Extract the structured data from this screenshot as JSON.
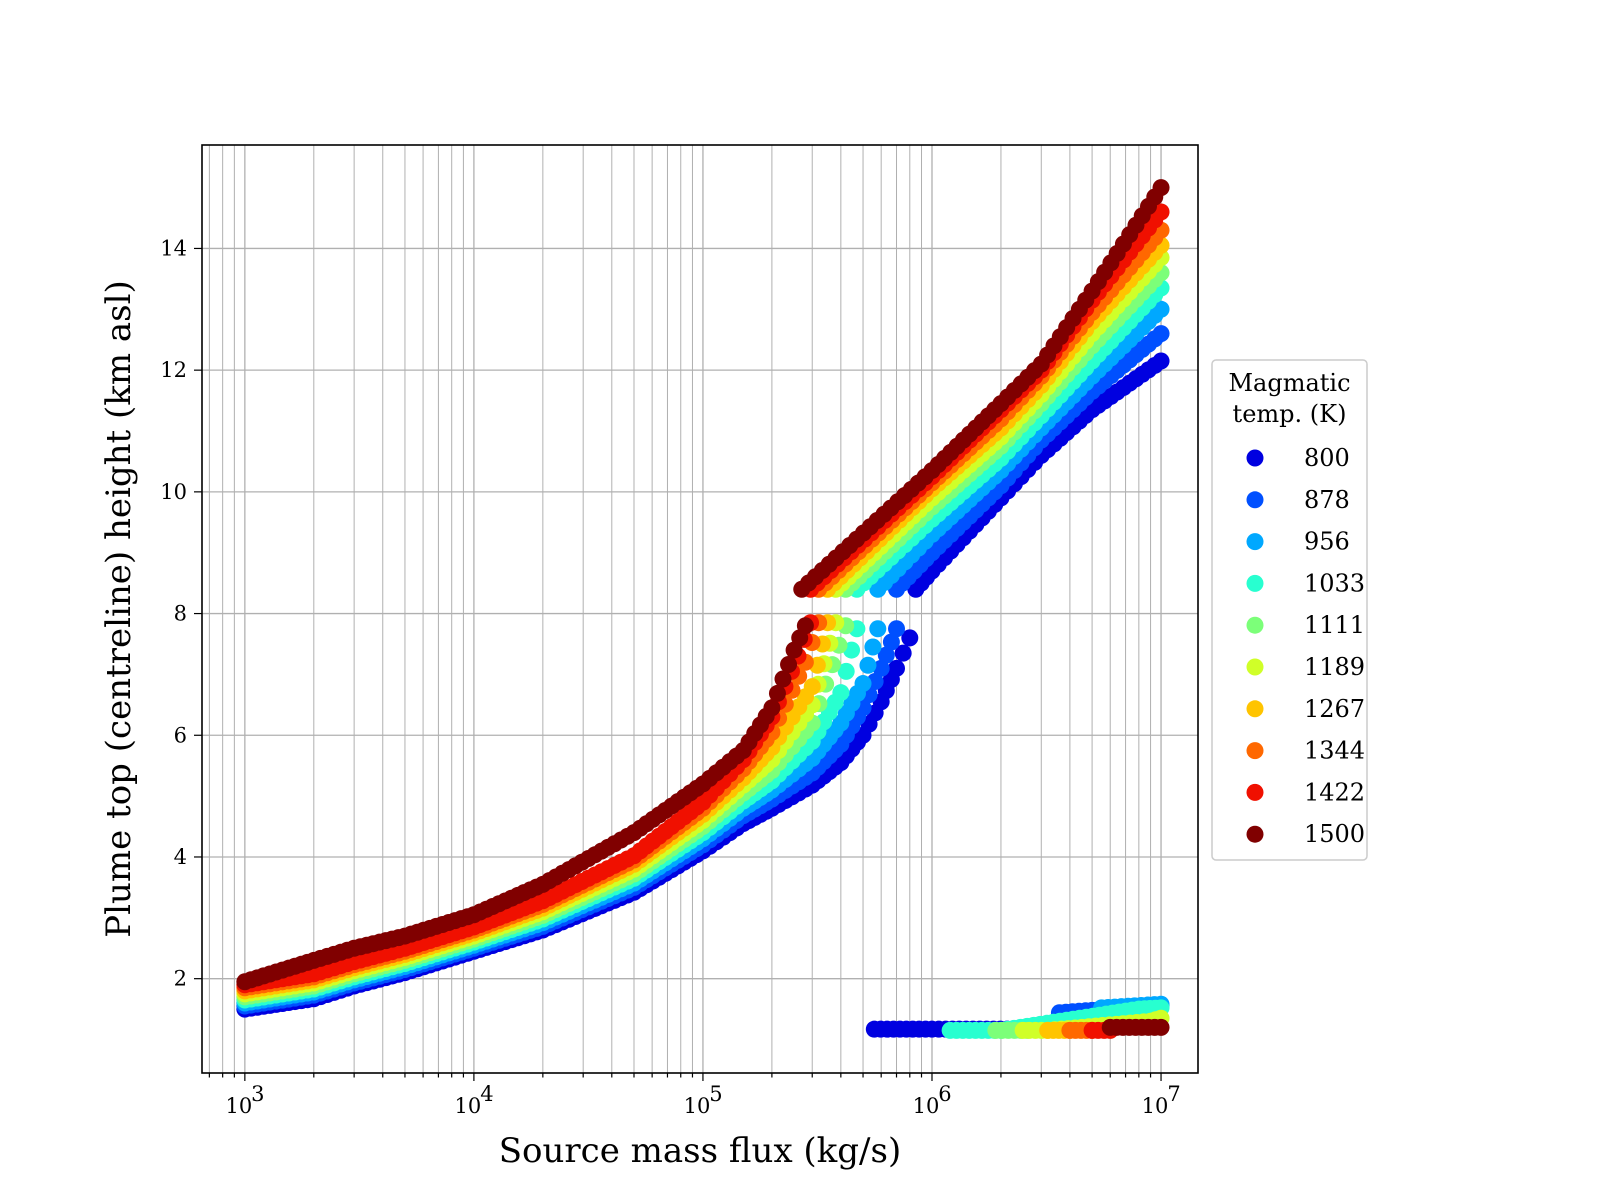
{
  "chart_data": {
    "type": "scatter",
    "title": "",
    "xlabel": "Source mass flux (kg/s)",
    "ylabel": "Plume top (centreline) height (km asl)",
    "x_scale": "log",
    "xlim": [
      650,
      14500000
    ],
    "ylim": [
      0.45,
      15.7
    ],
    "x_ticks": [
      {
        "value": 1000,
        "base": "10",
        "exp": "3"
      },
      {
        "value": 10000,
        "base": "10",
        "exp": "4"
      },
      {
        "value": 100000,
        "base": "10",
        "exp": "5"
      },
      {
        "value": 1000000,
        "base": "10",
        "exp": "6"
      },
      {
        "value": 10000000,
        "base": "10",
        "exp": "7"
      }
    ],
    "y_ticks": [
      {
        "value": 2,
        "label": "2"
      },
      {
        "value": 4,
        "label": "4"
      },
      {
        "value": 6,
        "label": "6"
      },
      {
        "value": 8,
        "label": "8"
      },
      {
        "value": 10,
        "label": "10"
      },
      {
        "value": 12,
        "label": "12"
      },
      {
        "value": 14,
        "label": "14"
      }
    ],
    "grid": true,
    "legend": {
      "title_lines": [
        "Magmatic",
        "temp. (K)"
      ],
      "placement": "outside-right"
    },
    "series": [
      {
        "name": "800",
        "color": "#0000e0",
        "low_branch": [
          [
            1000,
            1.5
          ],
          [
            2000,
            1.67
          ],
          [
            3000,
            1.88
          ],
          [
            5000,
            2.1
          ],
          [
            10000,
            2.45
          ],
          [
            20000,
            2.8
          ],
          [
            50000,
            3.42
          ],
          [
            100000,
            4.1
          ],
          [
            150000,
            4.55
          ],
          [
            200000,
            4.8
          ],
          [
            300000,
            5.18
          ],
          [
            400000,
            5.55
          ],
          [
            500000,
            6.0
          ],
          [
            600000,
            6.55
          ],
          [
            700000,
            7.1
          ],
          [
            800000,
            7.6
          ]
        ],
        "high_branch": [
          [
            850000,
            8.4
          ],
          [
            1000000,
            8.7
          ],
          [
            2000000,
            9.9
          ],
          [
            3000000,
            10.6
          ],
          [
            5000000,
            11.35
          ],
          [
            10000000,
            12.15
          ]
        ],
        "tail": [
          [
            560000,
            1.17
          ],
          [
            1000000,
            1.17
          ],
          [
            3000000,
            1.17
          ],
          [
            3600000,
            1.17
          ]
        ]
      },
      {
        "name": "878",
        "color": "#0050ff",
        "low_branch": [
          [
            1000,
            1.55
          ],
          [
            2000,
            1.73
          ],
          [
            3000,
            1.93
          ],
          [
            5000,
            2.15
          ],
          [
            10000,
            2.5
          ],
          [
            20000,
            2.86
          ],
          [
            50000,
            3.5
          ],
          [
            100000,
            4.2
          ],
          [
            150000,
            4.68
          ],
          [
            200000,
            4.95
          ],
          [
            300000,
            5.38
          ],
          [
            400000,
            5.85
          ],
          [
            500000,
            6.45
          ],
          [
            600000,
            7.1
          ],
          [
            700000,
            7.75
          ]
        ],
        "high_branch": [
          [
            700000,
            8.4
          ],
          [
            1000000,
            9.0
          ],
          [
            2000000,
            10.1
          ],
          [
            3000000,
            10.85
          ],
          [
            5000000,
            11.65
          ],
          [
            10000000,
            12.6
          ]
        ],
        "tail": [
          [
            3600000,
            1.44
          ],
          [
            5000000,
            1.48
          ],
          [
            10000000,
            1.56
          ]
        ]
      },
      {
        "name": "956",
        "color": "#00a8ff",
        "low_branch": [
          [
            1000,
            1.6
          ],
          [
            2000,
            1.78
          ],
          [
            3000,
            1.98
          ],
          [
            5000,
            2.2
          ],
          [
            10000,
            2.55
          ],
          [
            20000,
            2.92
          ],
          [
            50000,
            3.57
          ],
          [
            100000,
            4.3
          ],
          [
            150000,
            4.8
          ],
          [
            200000,
            5.1
          ],
          [
            300000,
            5.62
          ],
          [
            400000,
            6.2
          ],
          [
            500000,
            6.85
          ],
          [
            580000,
            7.75
          ]
        ],
        "high_branch": [
          [
            580000,
            8.4
          ],
          [
            1000000,
            9.3
          ],
          [
            2000000,
            10.35
          ],
          [
            3000000,
            11.05
          ],
          [
            5000000,
            11.9
          ],
          [
            10000000,
            13.0
          ]
        ],
        "tail": [
          [
            5500000,
            1.52
          ],
          [
            10000000,
            1.58
          ]
        ]
      },
      {
        "name": "1033",
        "color": "#28ffd0",
        "low_branch": [
          [
            1000,
            1.65
          ],
          [
            2000,
            1.83
          ],
          [
            3000,
            2.03
          ],
          [
            5000,
            2.25
          ],
          [
            10000,
            2.6
          ],
          [
            20000,
            2.98
          ],
          [
            50000,
            3.65
          ],
          [
            100000,
            4.4
          ],
          [
            150000,
            4.92
          ],
          [
            200000,
            5.25
          ],
          [
            300000,
            5.9
          ],
          [
            400000,
            6.7
          ],
          [
            470000,
            7.75
          ]
        ],
        "high_branch": [
          [
            470000,
            8.4
          ],
          [
            1000000,
            9.55
          ],
          [
            2000000,
            10.55
          ],
          [
            3000000,
            11.25
          ],
          [
            5000000,
            12.15
          ],
          [
            10000000,
            13.35
          ]
        ],
        "tail": [
          [
            1200000,
            1.15
          ],
          [
            2000000,
            1.15
          ],
          [
            8000000,
            1.5
          ],
          [
            10000000,
            1.52
          ]
        ]
      },
      {
        "name": "1111",
        "color": "#7cff79",
        "low_branch": [
          [
            1000,
            1.7
          ],
          [
            2000,
            1.88
          ],
          [
            3000,
            2.08
          ],
          [
            5000,
            2.3
          ],
          [
            10000,
            2.65
          ],
          [
            20000,
            3.04
          ],
          [
            50000,
            3.72
          ],
          [
            100000,
            4.5
          ],
          [
            150000,
            5.05
          ],
          [
            200000,
            5.42
          ],
          [
            300000,
            6.2
          ],
          [
            420000,
            7.8
          ]
        ],
        "high_branch": [
          [
            420000,
            8.4
          ],
          [
            1000000,
            9.75
          ],
          [
            2000000,
            10.75
          ],
          [
            3000000,
            11.45
          ],
          [
            5000000,
            12.4
          ],
          [
            10000000,
            13.6
          ]
        ],
        "tail": [
          [
            1900000,
            1.15
          ],
          [
            2600000,
            1.15
          ]
        ]
      },
      {
        "name": "1189",
        "color": "#d0ff28",
        "low_branch": [
          [
            1000,
            1.75
          ],
          [
            2000,
            1.93
          ],
          [
            3000,
            2.13
          ],
          [
            5000,
            2.35
          ],
          [
            10000,
            2.7
          ],
          [
            20000,
            3.1
          ],
          [
            50000,
            3.8
          ],
          [
            100000,
            4.6
          ],
          [
            150000,
            5.18
          ],
          [
            200000,
            5.6
          ],
          [
            300000,
            6.5
          ],
          [
            380000,
            7.85
          ]
        ],
        "high_branch": [
          [
            380000,
            8.4
          ],
          [
            1000000,
            9.9
          ],
          [
            2000000,
            10.9
          ],
          [
            3000000,
            11.6
          ],
          [
            5000000,
            12.6
          ],
          [
            10000000,
            13.85
          ]
        ],
        "tail": [
          [
            2500000,
            1.15
          ],
          [
            3200000,
            1.15
          ],
          [
            9000000,
            1.3
          ],
          [
            10000000,
            1.35
          ]
        ]
      },
      {
        "name": "1267",
        "color": "#ffc400",
        "low_branch": [
          [
            1000,
            1.8
          ],
          [
            2000,
            1.98
          ],
          [
            3000,
            2.18
          ],
          [
            5000,
            2.4
          ],
          [
            10000,
            2.75
          ],
          [
            20000,
            3.16
          ],
          [
            50000,
            3.88
          ],
          [
            100000,
            4.7
          ],
          [
            150000,
            5.3
          ],
          [
            200000,
            5.8
          ],
          [
            300000,
            6.8
          ],
          [
            350000,
            7.85
          ]
        ],
        "high_branch": [
          [
            350000,
            8.4
          ],
          [
            1000000,
            10.05
          ],
          [
            2000000,
            11.05
          ],
          [
            3000000,
            11.75
          ],
          [
            5000000,
            12.8
          ],
          [
            10000000,
            14.05
          ]
        ],
        "tail": [
          [
            3200000,
            1.15
          ],
          [
            4000000,
            1.15
          ]
        ]
      },
      {
        "name": "1344",
        "color": "#ff6800",
        "low_branch": [
          [
            1000,
            1.85
          ],
          [
            2000,
            2.03
          ],
          [
            3000,
            2.23
          ],
          [
            5000,
            2.45
          ],
          [
            10000,
            2.8
          ],
          [
            20000,
            3.22
          ],
          [
            50000,
            3.95
          ],
          [
            100000,
            4.8
          ],
          [
            150000,
            5.45
          ],
          [
            200000,
            6.05
          ],
          [
            280000,
            7.2
          ],
          [
            320000,
            7.85
          ]
        ],
        "high_branch": [
          [
            320000,
            8.4
          ],
          [
            1000000,
            10.15
          ],
          [
            2000000,
            11.2
          ],
          [
            3000000,
            11.9
          ],
          [
            5000000,
            12.95
          ],
          [
            10000000,
            14.3
          ]
        ],
        "tail": [
          [
            4000000,
            1.15
          ],
          [
            5000000,
            1.15
          ]
        ]
      },
      {
        "name": "1422",
        "color": "#f01000",
        "low_branch": [
          [
            1000,
            1.9
          ],
          [
            2000,
            2.08
          ],
          [
            3000,
            2.28
          ],
          [
            5000,
            2.5
          ],
          [
            10000,
            2.85
          ],
          [
            20000,
            3.28
          ],
          [
            50000,
            4.02
          ],
          [
            100000,
            4.9
          ],
          [
            150000,
            5.6
          ],
          [
            200000,
            6.3
          ],
          [
            260000,
            7.3
          ],
          [
            295000,
            7.85
          ]
        ],
        "high_branch": [
          [
            295000,
            8.4
          ],
          [
            1000000,
            10.25
          ],
          [
            2000000,
            11.35
          ],
          [
            3000000,
            12.0
          ],
          [
            5000000,
            13.15
          ],
          [
            10000000,
            14.6
          ]
        ],
        "tail": [
          [
            5000000,
            1.15
          ],
          [
            6000000,
            1.15
          ]
        ]
      },
      {
        "name": "1500",
        "color": "#800000",
        "low_branch": [
          [
            1000,
            1.95
          ],
          [
            2000,
            2.3
          ],
          [
            3000,
            2.5
          ],
          [
            5000,
            2.7
          ],
          [
            10000,
            3.05
          ],
          [
            20000,
            3.55
          ],
          [
            50000,
            4.4
          ],
          [
            100000,
            5.2
          ],
          [
            150000,
            5.75
          ],
          [
            200000,
            6.45
          ],
          [
            250000,
            7.4
          ],
          [
            280000,
            7.8
          ]
        ],
        "high_branch": [
          [
            270000,
            8.4
          ],
          [
            1000000,
            10.35
          ],
          [
            2000000,
            11.45
          ],
          [
            3000000,
            12.1
          ],
          [
            5000000,
            13.3
          ],
          [
            10000000,
            15.0
          ]
        ],
        "tail": [
          [
            6000000,
            1.2
          ],
          [
            10000000,
            1.2
          ]
        ]
      }
    ]
  }
}
